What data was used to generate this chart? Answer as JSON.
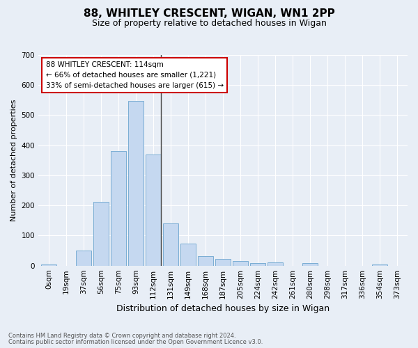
{
  "title": "88, WHITLEY CRESCENT, WIGAN, WN1 2PP",
  "subtitle": "Size of property relative to detached houses in Wigan",
  "xlabel": "Distribution of detached houses by size in Wigan",
  "ylabel": "Number of detached properties",
  "categories": [
    "0sqm",
    "19sqm",
    "37sqm",
    "56sqm",
    "75sqm",
    "93sqm",
    "112sqm",
    "131sqm",
    "149sqm",
    "168sqm",
    "187sqm",
    "205sqm",
    "224sqm",
    "242sqm",
    "261sqm",
    "280sqm",
    "298sqm",
    "317sqm",
    "336sqm",
    "354sqm",
    "373sqm"
  ],
  "values": [
    5,
    0,
    51,
    212,
    381,
    548,
    370,
    140,
    74,
    31,
    22,
    16,
    8,
    10,
    0,
    8,
    0,
    0,
    0,
    5,
    0
  ],
  "bar_color": "#c5d8f0",
  "bar_edge_color": "#7aadd4",
  "annotation_line1": "88 WHITLEY CRESCENT: 114sqm",
  "annotation_line2": "← 66% of detached houses are smaller (1,221)",
  "annotation_line3": "33% of semi-detached houses are larger (615) →",
  "vline_color": "#444444",
  "annotation_box_facecolor": "#ffffff",
  "annotation_box_edgecolor": "#cc0000",
  "ylim": [
    0,
    700
  ],
  "yticks": [
    0,
    100,
    200,
    300,
    400,
    500,
    600,
    700
  ],
  "footer_line1": "Contains HM Land Registry data © Crown copyright and database right 2024.",
  "footer_line2": "Contains public sector information licensed under the Open Government Licence v3.0.",
  "bg_color": "#e8eef6",
  "plot_bg_color": "#e8eef6",
  "grid_color": "#ffffff",
  "title_fontsize": 11,
  "subtitle_fontsize": 9,
  "ylabel_fontsize": 8,
  "xlabel_fontsize": 9,
  "tick_fontsize": 7.5
}
